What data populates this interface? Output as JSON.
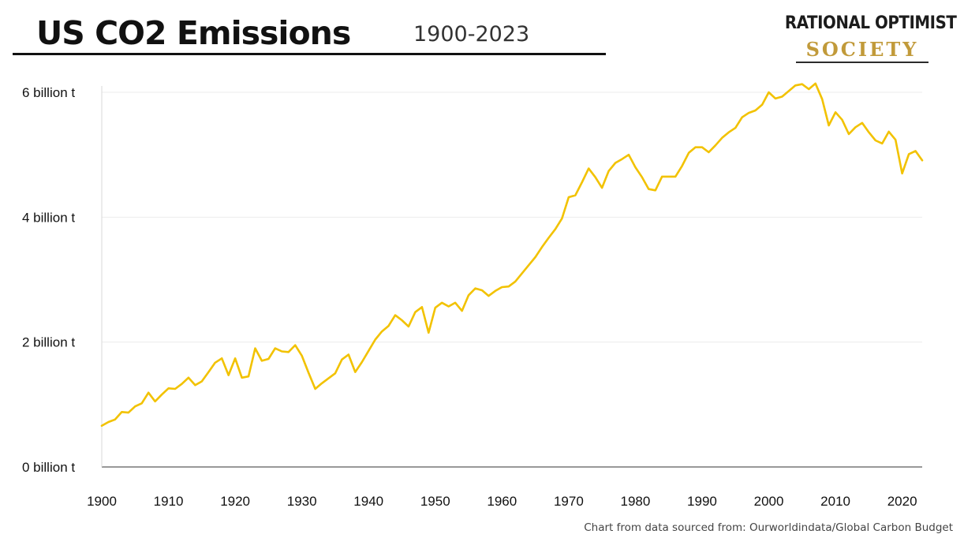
{
  "header": {
    "title": "US CO2 Emissions",
    "subtitle": "1900-2023"
  },
  "logo": {
    "line1": "RATIONAL OPTIMIST",
    "line2": "SOCIETY"
  },
  "source_note": "Chart from data sourced from: Ourworldindata/Global Carbon Budget",
  "colors": {
    "line": "#F2C200",
    "grid": "#ececec",
    "axis": "#333333",
    "logo_gold": "#c19a3a"
  },
  "chart_data": {
    "type": "line",
    "title": "US CO2 Emissions",
    "subtitle": "1900-2023",
    "xlabel": "",
    "ylabel": "",
    "xlim": [
      1900,
      2023
    ],
    "ylim": [
      0,
      6
    ],
    "grid": "horizontal",
    "y_ticks": [
      0,
      2,
      4,
      6
    ],
    "y_tick_labels": [
      "0 billion t",
      "2 billion t",
      "4 billion t",
      "6 billion t"
    ],
    "x_ticks": [
      1900,
      1910,
      1920,
      1930,
      1940,
      1950,
      1960,
      1970,
      1980,
      1990,
      2000,
      2010,
      2020
    ],
    "x_tick_labels": [
      "1900",
      "1910",
      "1920",
      "1930",
      "1940",
      "1950",
      "1960",
      "1970",
      "1980",
      "1990",
      "2000",
      "2010",
      "2020"
    ],
    "x": [
      1900,
      1901,
      1902,
      1903,
      1904,
      1905,
      1906,
      1907,
      1908,
      1909,
      1910,
      1911,
      1912,
      1913,
      1914,
      1915,
      1916,
      1917,
      1918,
      1919,
      1920,
      1921,
      1922,
      1923,
      1924,
      1925,
      1926,
      1927,
      1928,
      1929,
      1930,
      1931,
      1932,
      1933,
      1934,
      1935,
      1936,
      1937,
      1938,
      1939,
      1940,
      1941,
      1942,
      1943,
      1944,
      1945,
      1946,
      1947,
      1948,
      1949,
      1950,
      1951,
      1952,
      1953,
      1954,
      1955,
      1956,
      1957,
      1958,
      1959,
      1960,
      1961,
      1962,
      1963,
      1964,
      1965,
      1966,
      1967,
      1968,
      1969,
      1970,
      1971,
      1972,
      1973,
      1974,
      1975,
      1976,
      1977,
      1978,
      1979,
      1980,
      1981,
      1982,
      1983,
      1984,
      1985,
      1986,
      1987,
      1988,
      1989,
      1990,
      1991,
      1992,
      1993,
      1994,
      1995,
      1996,
      1997,
      1998,
      1999,
      2000,
      2001,
      2002,
      2003,
      2004,
      2005,
      2006,
      2007,
      2008,
      2009,
      2010,
      2011,
      2012,
      2013,
      2014,
      2015,
      2016,
      2017,
      2018,
      2019,
      2020,
      2021,
      2022,
      2023
    ],
    "series": [
      {
        "values": [
          0.66,
          0.72,
          0.76,
          0.88,
          0.87,
          0.97,
          1.02,
          1.19,
          1.05,
          1.16,
          1.26,
          1.25,
          1.33,
          1.43,
          1.31,
          1.37,
          1.52,
          1.67,
          1.74,
          1.47,
          1.74,
          1.43,
          1.45,
          1.9,
          1.7,
          1.73,
          1.9,
          1.85,
          1.84,
          1.95,
          1.78,
          1.51,
          1.25,
          1.34,
          1.42,
          1.5,
          1.72,
          1.8,
          1.52,
          1.68,
          1.86,
          2.04,
          2.17,
          2.26,
          2.43,
          2.35,
          2.25,
          2.48,
          2.56,
          2.15,
          2.55,
          2.63,
          2.57,
          2.63,
          2.5,
          2.75,
          2.86,
          2.83,
          2.74,
          2.82,
          2.88,
          2.89,
          2.97,
          3.1,
          3.23,
          3.36,
          3.52,
          3.67,
          3.81,
          3.98,
          4.32,
          4.35,
          4.56,
          4.78,
          4.64,
          4.47,
          4.74,
          4.87,
          4.93,
          5.0,
          4.8,
          4.64,
          4.45,
          4.43,
          4.65,
          4.65,
          4.65,
          4.82,
          5.03,
          5.12,
          5.12,
          5.04,
          5.15,
          5.27,
          5.36,
          5.43,
          5.6,
          5.67,
          5.71,
          5.8,
          6.0,
          5.9,
          5.93,
          6.02,
          6.11,
          6.13,
          6.05,
          6.14,
          5.89,
          5.47,
          5.68,
          5.56,
          5.33,
          5.44,
          5.51,
          5.36,
          5.23,
          5.18,
          5.37,
          5.24,
          4.7,
          5.01,
          5.06,
          4.91
        ]
      }
    ]
  }
}
